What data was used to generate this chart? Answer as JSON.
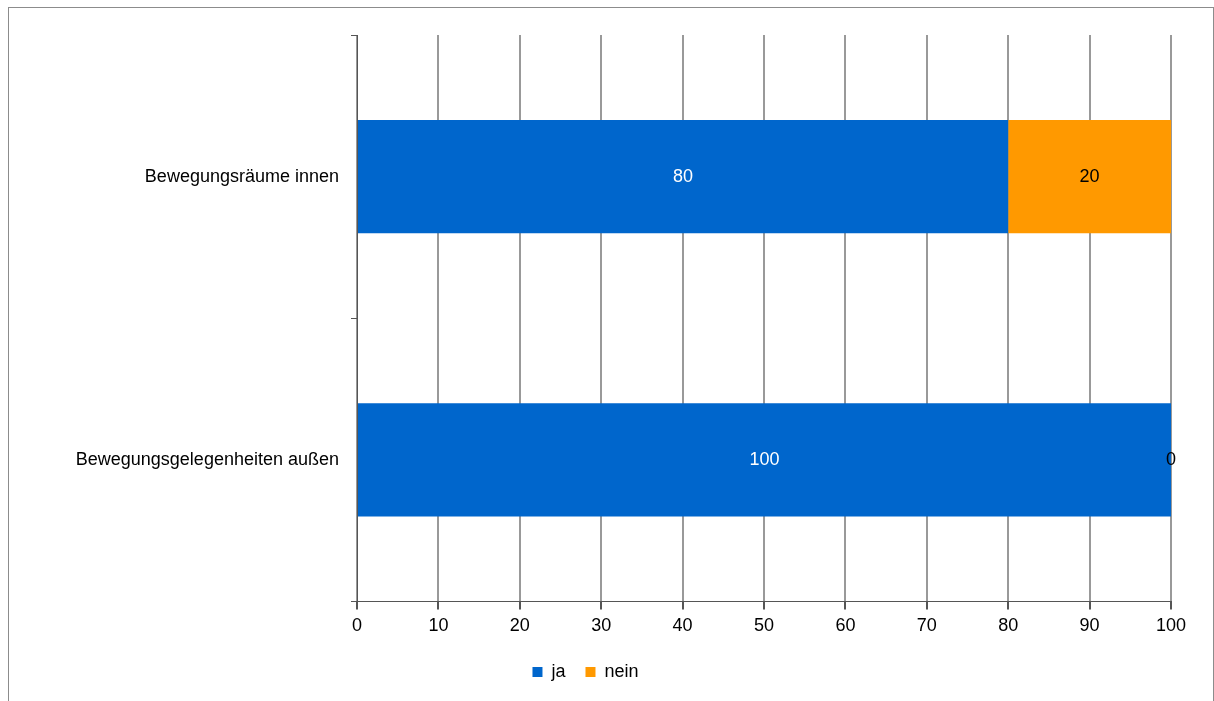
{
  "chart_data": {
    "type": "bar",
    "orientation": "horizontal",
    "stacked": true,
    "categories": [
      "Bewegungsräume innen",
      "Bewegungsgelegenheiten außen"
    ],
    "series": [
      {
        "name": "ja",
        "color": "#0066cc",
        "values": [
          80,
          100
        ]
      },
      {
        "name": "nein",
        "color": "#ff9900",
        "values": [
          20,
          0
        ]
      }
    ],
    "xlim": [
      0,
      100
    ],
    "xticks": [
      0,
      10,
      20,
      30,
      40,
      50,
      60,
      70,
      80,
      90,
      100
    ],
    "grid": "x",
    "legend": "bottom",
    "data_labels": true
  }
}
